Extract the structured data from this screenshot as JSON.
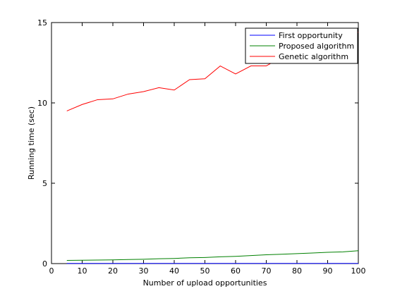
{
  "chart_data": {
    "type": "line",
    "title": "",
    "xlabel": "Number of upload opportunities",
    "ylabel": "Running time (sec)",
    "xlim": [
      0,
      100
    ],
    "ylim": [
      0,
      15
    ],
    "xticks": [
      0,
      10,
      20,
      30,
      40,
      50,
      60,
      70,
      80,
      90,
      100
    ],
    "yticks": [
      0,
      5,
      10,
      15
    ],
    "grid": false,
    "legend_position": "top-right",
    "x": [
      5,
      10,
      15,
      20,
      25,
      30,
      35,
      40,
      45,
      50,
      55,
      60,
      65,
      70,
      75,
      80,
      85,
      90,
      95,
      100
    ],
    "series": [
      {
        "name": "First opportunity",
        "color": "#0000ff",
        "values": [
          0.01,
          0.01,
          0.01,
          0.01,
          0.01,
          0.01,
          0.01,
          0.01,
          0.01,
          0.01,
          0.01,
          0.01,
          0.01,
          0.01,
          0.01,
          0.01,
          0.01,
          0.01,
          0.01,
          0.01
        ]
      },
      {
        "name": "Proposed algorithm",
        "color": "#008000",
        "values": [
          0.2,
          0.21,
          0.22,
          0.23,
          0.25,
          0.27,
          0.3,
          0.32,
          0.36,
          0.38,
          0.42,
          0.45,
          0.5,
          0.55,
          0.58,
          0.62,
          0.66,
          0.7,
          0.73,
          0.8
        ]
      },
      {
        "name": "Genetic algorithm",
        "color": "#ff0000",
        "values": [
          9.5,
          9.9,
          10.2,
          10.25,
          10.55,
          10.7,
          10.95,
          10.8,
          11.45,
          11.5,
          12.3,
          11.8,
          12.3,
          12.3,
          12.85,
          13.2,
          13.45,
          13.7,
          14.0,
          14.4
        ]
      }
    ]
  }
}
